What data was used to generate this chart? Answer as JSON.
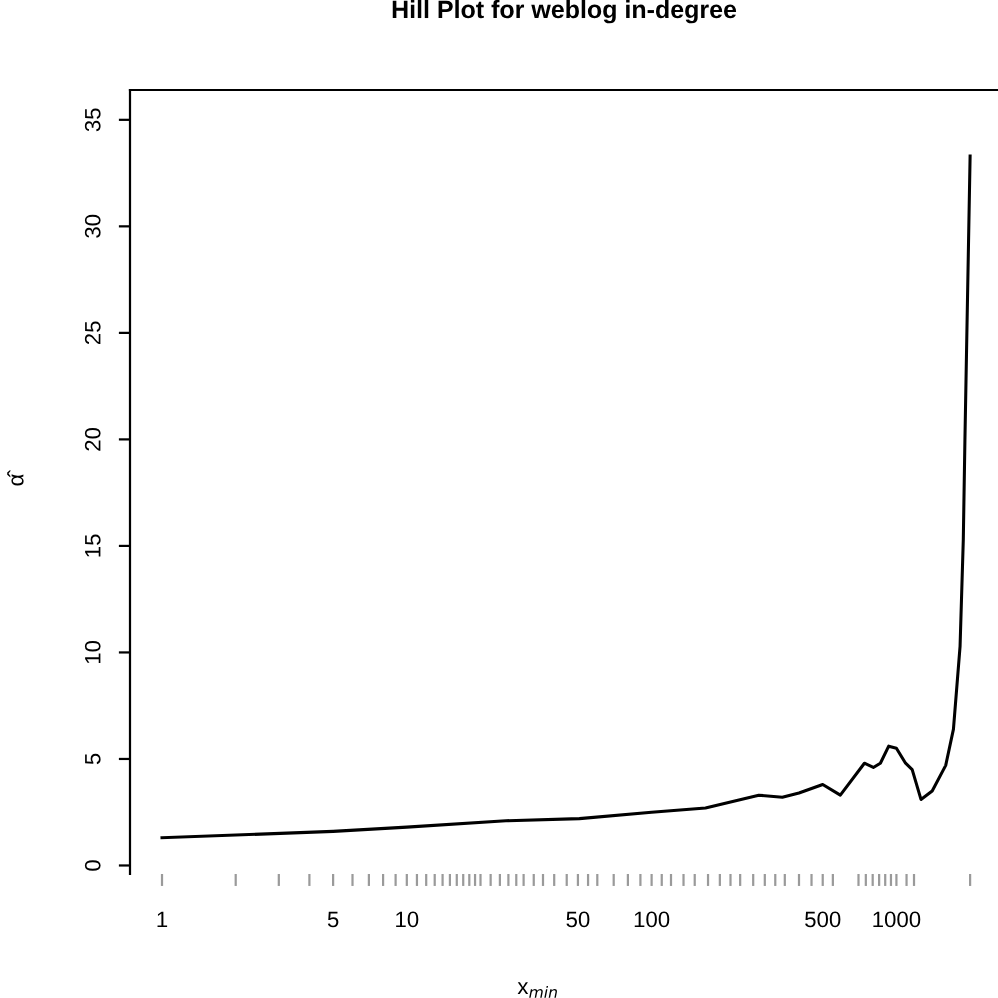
{
  "chart_data": {
    "type": "line",
    "title": "Hill Plot for weblog in-degree",
    "xlabel": "x$_{min}$",
    "ylabel": "α̂",
    "log": "x",
    "color": "#000000",
    "x": [
      1,
      5,
      10,
      25.4,
      50.7,
      100,
      166,
      274,
      342,
      400,
      500,
      590,
      740,
      805,
      860,
      930,
      1000,
      1090,
      1160,
      1260,
      1400,
      1590,
      1710,
      1820,
      1876,
      1905,
      2000
    ],
    "values": [
      1.3,
      1.6,
      1.8,
      2.1,
      2.2,
      2.5,
      2.7,
      3.3,
      3.2,
      3.4,
      3.8,
      3.3,
      4.8,
      4.6,
      4.8,
      5.6,
      5.5,
      4.8,
      4.5,
      3.1,
      3.5,
      4.7,
      6.4,
      10.3,
      15.3,
      20,
      33.3
    ],
    "xlim": [
      0.74,
      2600
    ],
    "ylim": [
      -0.4,
      36.4
    ],
    "yticks": [
      0,
      5,
      10,
      15,
      20,
      25,
      30,
      35
    ],
    "xticks": [
      1,
      {
        "value": 2,
        "label": null
      },
      {
        "value": 3,
        "label": null
      },
      {
        "value": 4,
        "label": null
      },
      5,
      {
        "value": 6,
        "label": null
      },
      {
        "value": 7,
        "label": null
      },
      {
        "value": 8,
        "label": null
      },
      {
        "value": 9,
        "label": null
      },
      10,
      {
        "value": 11,
        "label": null
      },
      {
        "value": 12,
        "label": null
      },
      {
        "value": 13,
        "label": null
      },
      {
        "value": 14,
        "label": null
      },
      {
        "value": 15,
        "label": null
      },
      {
        "value": 16,
        "label": null
      },
      {
        "value": 17,
        "label": null
      },
      {
        "value": 18,
        "label": null
      },
      {
        "value": 19,
        "label": null
      },
      {
        "value": 20,
        "label": null
      },
      {
        "value": 22,
        "label": null
      },
      {
        "value": 24,
        "label": null
      },
      {
        "value": 26,
        "label": null
      },
      {
        "value": 28,
        "label": null
      },
      {
        "value": 30,
        "label": null
      },
      {
        "value": 33,
        "label": null
      },
      {
        "value": 36,
        "label": null
      },
      {
        "value": 40,
        "label": null
      },
      {
        "value": 45,
        "label": null
      },
      50,
      {
        "value": 55,
        "label": null
      },
      {
        "value": 60,
        "label": null
      },
      {
        "value": 70,
        "label": null
      },
      {
        "value": 80,
        "label": null
      },
      {
        "value": 90,
        "label": null
      },
      100,
      {
        "value": 110,
        "label": null
      },
      {
        "value": 120,
        "label": null
      },
      {
        "value": 135,
        "label": null
      },
      {
        "value": 150,
        "label": null
      },
      {
        "value": 170,
        "label": null
      },
      {
        "value": 190,
        "label": null
      },
      {
        "value": 210,
        "label": null
      },
      {
        "value": 230,
        "label": null
      },
      {
        "value": 260,
        "label": null
      },
      {
        "value": 290,
        "label": null
      },
      {
        "value": 320,
        "label": null
      },
      {
        "value": 350,
        "label": null
      },
      {
        "value": 400,
        "label": null
      },
      {
        "value": 450,
        "label": null
      },
      500,
      {
        "value": 550,
        "label": null
      },
      {
        "value": 700,
        "label": null
      },
      {
        "value": 750,
        "label": null
      },
      {
        "value": 800,
        "label": null
      },
      {
        "value": 850,
        "label": null
      },
      {
        "value": 900,
        "label": null
      },
      {
        "value": 950,
        "label": null
      },
      1000,
      {
        "value": 1100,
        "label": null
      },
      {
        "value": 1180,
        "label": null
      },
      {
        "value": 2000,
        "label": null
      }
    ],
    "grid": false,
    "legend": false
  }
}
